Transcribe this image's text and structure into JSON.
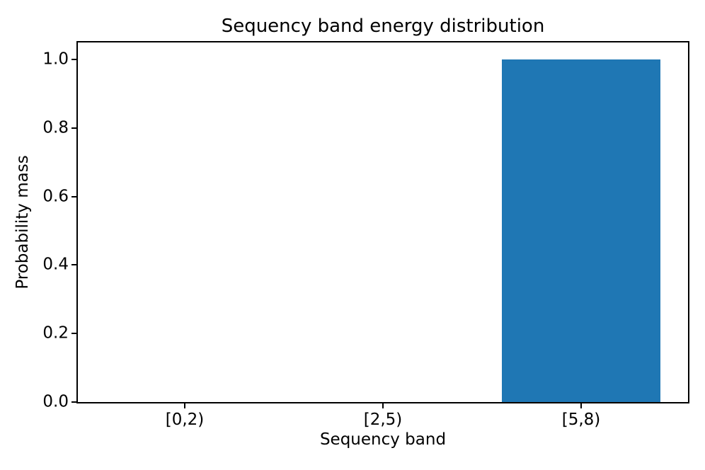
{
  "chart_data": {
    "type": "bar",
    "title": "Sequency band energy distribution",
    "xlabel": "Sequency band",
    "ylabel": "Probability mass",
    "categories": [
      "[0,2)",
      "[2,5)",
      "[5,8)"
    ],
    "values": [
      0.0,
      0.0,
      1.0
    ],
    "bar_color": "#1f77b4",
    "bar_width_fraction": 0.8,
    "xlim": [
      -0.54,
      2.54
    ],
    "ylim": [
      0.0,
      1.05
    ],
    "yticks": [
      {
        "value": 0.0,
        "label": "0.0"
      },
      {
        "value": 0.2,
        "label": "0.2"
      },
      {
        "value": 0.4,
        "label": "0.4"
      },
      {
        "value": 0.6,
        "label": "0.6"
      },
      {
        "value": 0.8,
        "label": "0.8"
      },
      {
        "value": 1.0,
        "label": "1.0"
      }
    ],
    "grid": false,
    "legend": null,
    "text_color": "#000000",
    "spine_color": "#000000"
  }
}
